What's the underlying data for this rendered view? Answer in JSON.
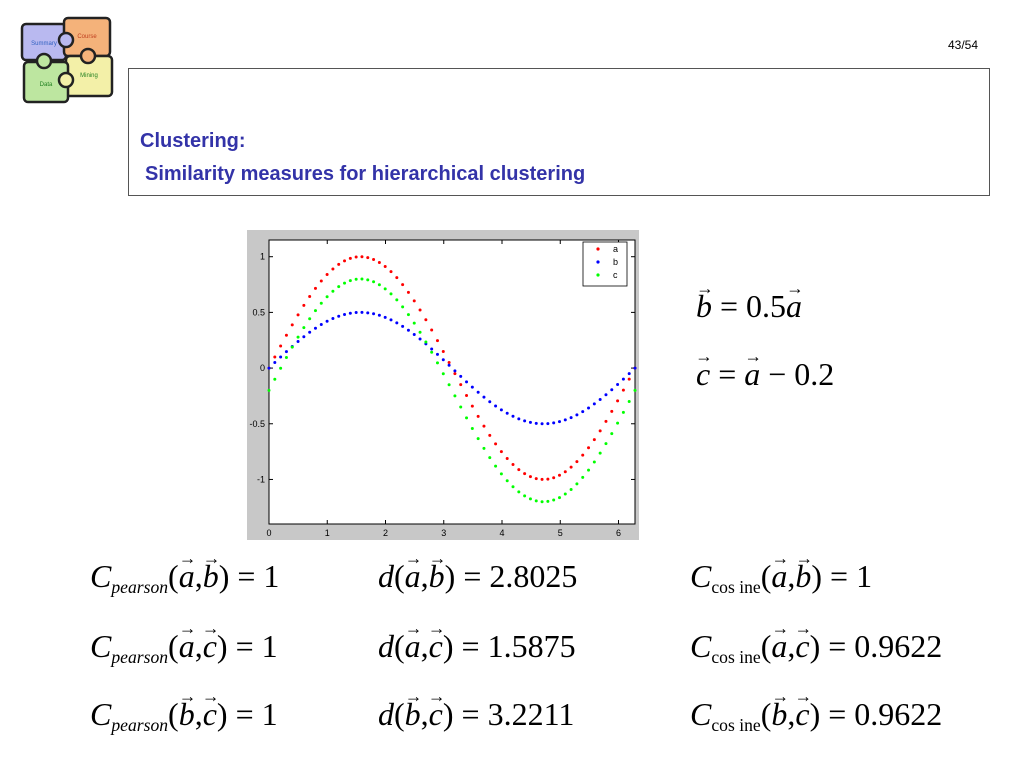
{
  "logo": {
    "pieces": [
      "Summary",
      "Course",
      "Mining",
      "Data"
    ],
    "colors": [
      "#b9b9f0",
      "#f4b27a",
      "#f3f0a8",
      "#bde6a0"
    ]
  },
  "page": {
    "number": "43/54"
  },
  "title": {
    "line1": "Clustering:",
    "line2": "Similarity measures for hierarchical clustering"
  },
  "definitions": [
    {
      "lhs": "b",
      "rhs_coef": "0.5",
      "rhs_var": "a",
      "text": "= 0.5"
    },
    {
      "lhs": "c",
      "rhs_var": "a",
      "rhs_tail": "− 0.2"
    }
  ],
  "measures": {
    "pearson": {
      "symbol": "C",
      "subscript": "pearson",
      "rows": [
        {
          "pair": [
            "a",
            "b"
          ],
          "value": "1"
        },
        {
          "pair": [
            "a",
            "c"
          ],
          "value": "1"
        },
        {
          "pair": [
            "b",
            "c"
          ],
          "value": "1"
        }
      ]
    },
    "distance": {
      "symbol": "d",
      "rows": [
        {
          "pair": [
            "a",
            "b"
          ],
          "value": "2.8025"
        },
        {
          "pair": [
            "a",
            "c"
          ],
          "value": "1.5875"
        },
        {
          "pair": [
            "b",
            "c"
          ],
          "value": "3.2211"
        }
      ]
    },
    "cosine": {
      "symbol": "C",
      "subscript": "cos ine",
      "rows": [
        {
          "pair": [
            "a",
            "b"
          ],
          "value": "1"
        },
        {
          "pair": [
            "a",
            "c"
          ],
          "value": "0.9622"
        },
        {
          "pair": [
            "b",
            "c"
          ],
          "value": "0.9622"
        }
      ]
    }
  },
  "chart_data": {
    "type": "scatter",
    "title": "",
    "xlabel": "",
    "ylabel": "",
    "xlim": [
      0,
      6.283
    ],
    "ylim": [
      -1.4,
      1.15
    ],
    "xticks": [
      "0",
      "1",
      "2",
      "3",
      "4",
      "5",
      "6"
    ],
    "yticks": [
      "1",
      "0.5",
      "0",
      "-0.5",
      "-1"
    ],
    "grid": false,
    "legend_position": "top-right",
    "x_range": [
      0,
      6.2832
    ],
    "points_per_series": 64,
    "series": [
      {
        "name": "a",
        "color": "#ff0000",
        "amplitude": 1.0,
        "offset": 0.0
      },
      {
        "name": "b",
        "color": "#0000ff",
        "amplitude": 0.5,
        "offset": 0.0
      },
      {
        "name": "c",
        "color": "#00ff00",
        "amplitude": 1.0,
        "offset": -0.2
      }
    ]
  }
}
